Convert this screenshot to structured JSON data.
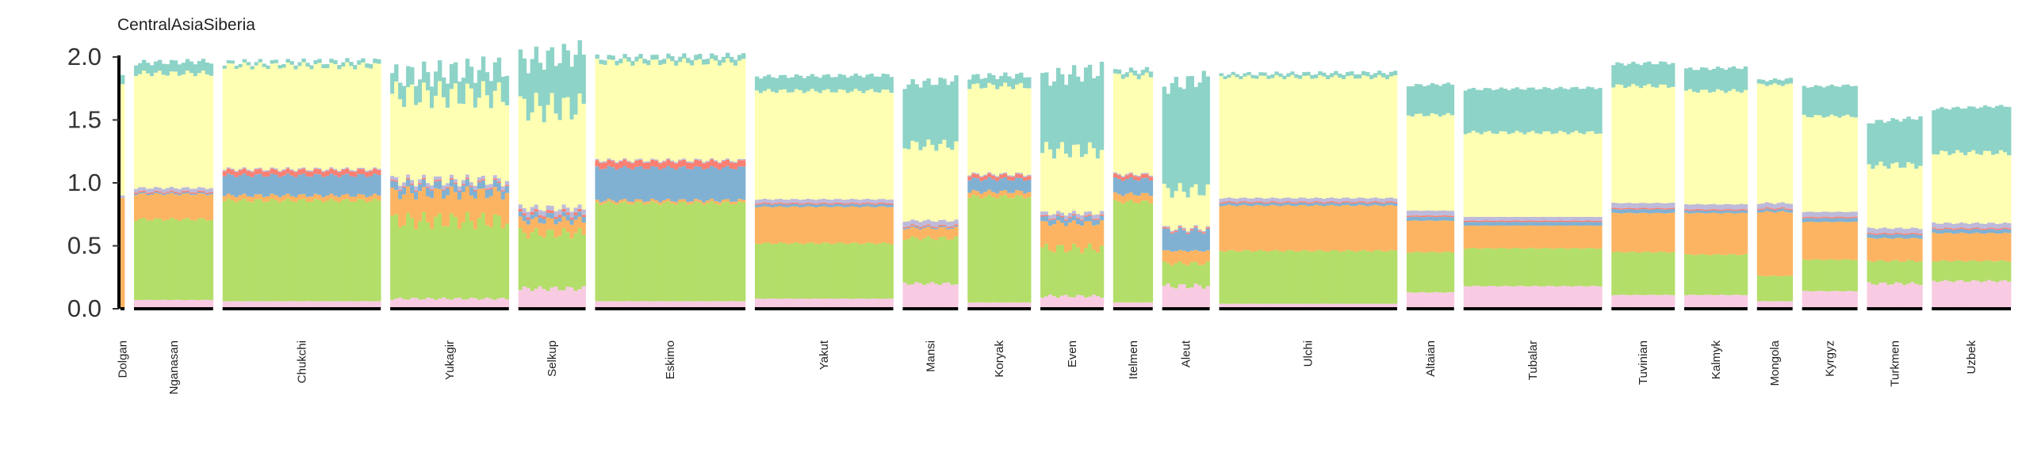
{
  "chart_data": {
    "type": "bar",
    "title": "CentralAsiaSiberia",
    "xlabel": "",
    "ylabel": "",
    "ylim": [
      0,
      2.0
    ],
    "yticks": [
      0.0,
      0.5,
      1.0,
      1.5,
      2.0
    ],
    "ytick_labels": [
      "0.0",
      "0.5",
      "1.0",
      "1.5",
      "2.0"
    ],
    "grid": false,
    "legend": "none",
    "stack_colors": [
      "#f8cbe2",
      "#b3de69",
      "#fdb462",
      "#80b1d3",
      "#fb8072",
      "#bebada",
      "#ffffb3",
      "#8dd3c7"
    ],
    "populations": [
      {
        "name": "Dolgan",
        "n": 1,
        "profile": [
          0.0,
          0.0,
          0.88,
          0.0,
          0.0,
          0.02,
          0.88,
          0.08
        ],
        "vary": 0.02
      },
      {
        "name": "Nganasan",
        "n": 20,
        "profile": [
          0.07,
          0.64,
          0.2,
          0.01,
          0.01,
          0.03,
          0.91,
          0.09
        ],
        "vary": 0.02
      },
      {
        "name": "Chukchi",
        "n": 40,
        "profile": [
          0.06,
          0.8,
          0.04,
          0.16,
          0.04,
          0.01,
          0.82,
          0.03
        ],
        "vary": 0.02
      },
      {
        "name": "Yukagir",
        "n": 30,
        "profile": [
          0.08,
          0.62,
          0.22,
          0.06,
          0.01,
          0.03,
          0.68,
          0.18
        ],
        "vary": 0.12
      },
      {
        "name": "Selkup",
        "n": 17,
        "profile": [
          0.16,
          0.44,
          0.1,
          0.04,
          0.02,
          0.04,
          0.8,
          0.4
        ],
        "vary": 0.12
      },
      {
        "name": "Eskimo",
        "n": 38,
        "profile": [
          0.06,
          0.78,
          0.02,
          0.26,
          0.05,
          0.01,
          0.78,
          0.04
        ],
        "vary": 0.02
      },
      {
        "name": "Yakut",
        "n": 35,
        "profile": [
          0.08,
          0.44,
          0.29,
          0.02,
          0.01,
          0.03,
          0.86,
          0.12
        ],
        "vary": 0.02
      },
      {
        "name": "Mansi",
        "n": 14,
        "profile": [
          0.2,
          0.36,
          0.08,
          0.01,
          0.01,
          0.04,
          0.6,
          0.5
        ],
        "vary": 0.06
      },
      {
        "name": "Koryak",
        "n": 16,
        "profile": [
          0.05,
          0.84,
          0.04,
          0.1,
          0.03,
          0.01,
          0.7,
          0.08
        ],
        "vary": 0.02
      },
      {
        "name": "Even",
        "n": 16,
        "profile": [
          0.1,
          0.38,
          0.2,
          0.04,
          0.01,
          0.03,
          0.5,
          0.6
        ],
        "vary": 0.12
      },
      {
        "name": "Itelmen",
        "n": 10,
        "profile": [
          0.05,
          0.8,
          0.06,
          0.12,
          0.03,
          0.01,
          0.78,
          0.04
        ],
        "vary": 0.02
      },
      {
        "name": "Aleut",
        "n": 12,
        "profile": [
          0.18,
          0.18,
          0.1,
          0.16,
          0.01,
          0.01,
          0.3,
          0.86
        ],
        "vary": 0.12
      },
      {
        "name": "Ulchi",
        "n": 45,
        "profile": [
          0.04,
          0.42,
          0.36,
          0.02,
          0.01,
          0.03,
          0.96,
          0.03
        ],
        "vary": 0.02
      },
      {
        "name": "Altaian",
        "n": 12,
        "profile": [
          0.13,
          0.32,
          0.25,
          0.03,
          0.01,
          0.04,
          0.76,
          0.24
        ],
        "vary": 0.02
      },
      {
        "name": "Tubalar",
        "n": 35,
        "profile": [
          0.18,
          0.3,
          0.18,
          0.03,
          0.01,
          0.03,
          0.67,
          0.35
        ],
        "vary": 0.02
      },
      {
        "name": "Tuvinian",
        "n": 16,
        "profile": [
          0.11,
          0.34,
          0.31,
          0.03,
          0.01,
          0.04,
          0.93,
          0.18
        ],
        "vary": 0.02
      },
      {
        "name": "Kalmyk",
        "n": 16,
        "profile": [
          0.11,
          0.32,
          0.33,
          0.02,
          0.01,
          0.04,
          0.9,
          0.18
        ],
        "vary": 0.02
      },
      {
        "name": "Mongola",
        "n": 9,
        "profile": [
          0.06,
          0.2,
          0.51,
          0.02,
          0.01,
          0.04,
          0.94,
          0.04
        ],
        "vary": 0.02
      },
      {
        "name": "Kyrgyz",
        "n": 14,
        "profile": [
          0.14,
          0.25,
          0.3,
          0.03,
          0.01,
          0.04,
          0.76,
          0.24
        ],
        "vary": 0.02
      },
      {
        "name": "Turkmen",
        "n": 14,
        "profile": [
          0.2,
          0.18,
          0.18,
          0.03,
          0.01,
          0.04,
          0.5,
          0.36
        ],
        "vary": 0.06
      },
      {
        "name": "Uzbek",
        "n": 20,
        "profile": [
          0.22,
          0.16,
          0.22,
          0.03,
          0.01,
          0.04,
          0.56,
          0.36
        ],
        "vary": 0.04
      }
    ]
  }
}
